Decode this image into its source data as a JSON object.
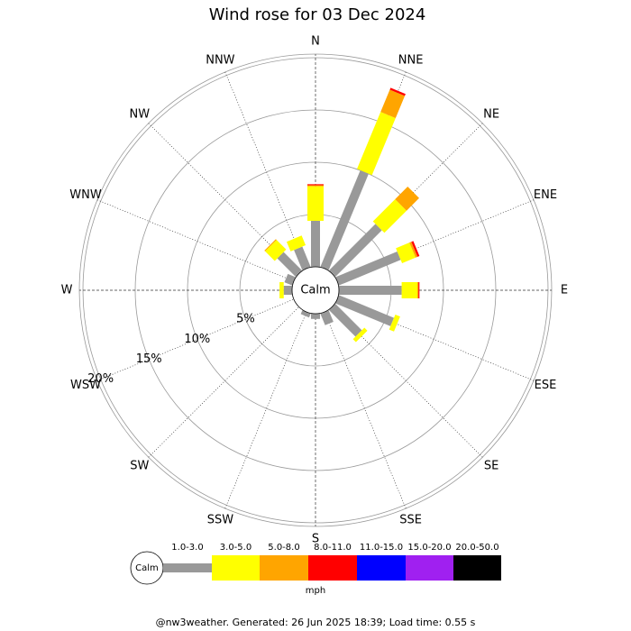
{
  "chart_data": {
    "type": "windrose",
    "title": "Wind rose for 03 Dec 2024",
    "directions": [
      "N",
      "NNE",
      "NE",
      "ENE",
      "E",
      "ESE",
      "SE",
      "SSE",
      "S",
      "SSW",
      "SW",
      "WSW",
      "W",
      "WNW",
      "NW",
      "NNW"
    ],
    "calm_label": "Calm",
    "units": "mph",
    "rlim": [
      0,
      20
    ],
    "rticks": [
      {
        "value": 5,
        "label": "5%"
      },
      {
        "value": 10,
        "label": "10%"
      },
      {
        "value": 15,
        "label": "15%"
      },
      {
        "value": 20,
        "label": "20%"
      }
    ],
    "series": [
      {
        "name": "1.0-3.0",
        "color": "#999999",
        "values": [
          4.4,
          10.0,
          6.3,
          6.4,
          6.0,
          5.7,
          3.6,
          1.2,
          0.5,
          0.4,
          0,
          0,
          0.8,
          0.8,
          2.5,
          2.1
        ]
      },
      {
        "name": "3.0-5.0",
        "color": "#ffff00",
        "values": [
          3.3,
          5.9,
          3.0,
          1.4,
          1.5,
          0.5,
          0.4,
          0,
          0,
          0,
          0,
          0,
          0.4,
          0,
          1.3,
          1.0
        ]
      },
      {
        "name": "5.0-8.0",
        "color": "#ffa500",
        "values": [
          0.1,
          2.3,
          1.7,
          0.2,
          0.1,
          0,
          0,
          0,
          0,
          0,
          0,
          0,
          0,
          0,
          0.1,
          0
        ]
      },
      {
        "name": "8.0-11.0",
        "color": "#ff0000",
        "values": [
          0.1,
          0.2,
          0,
          0.2,
          0.1,
          0,
          0,
          0,
          0,
          0,
          0,
          0,
          0,
          0,
          0,
          0
        ]
      },
      {
        "name": "11.0-15.0",
        "color": "#0000ff",
        "values": [
          0,
          0,
          0,
          0,
          0,
          0,
          0,
          0,
          0,
          0,
          0,
          0,
          0,
          0,
          0,
          0
        ]
      },
      {
        "name": "15.0-20.0",
        "color": "#a020f0",
        "values": [
          0,
          0,
          0,
          0,
          0,
          0,
          0,
          0,
          0,
          0,
          0,
          0,
          0,
          0,
          0,
          0
        ]
      },
      {
        "name": "20.0-50.0",
        "color": "#000000",
        "values": [
          0,
          0,
          0,
          0,
          0,
          0,
          0,
          0,
          0,
          0,
          0,
          0,
          0,
          0,
          0,
          0
        ]
      }
    ],
    "footer": "@nw3weather. Generated: 26 Jun 2025 18:39; Load time: 0.55 s"
  }
}
